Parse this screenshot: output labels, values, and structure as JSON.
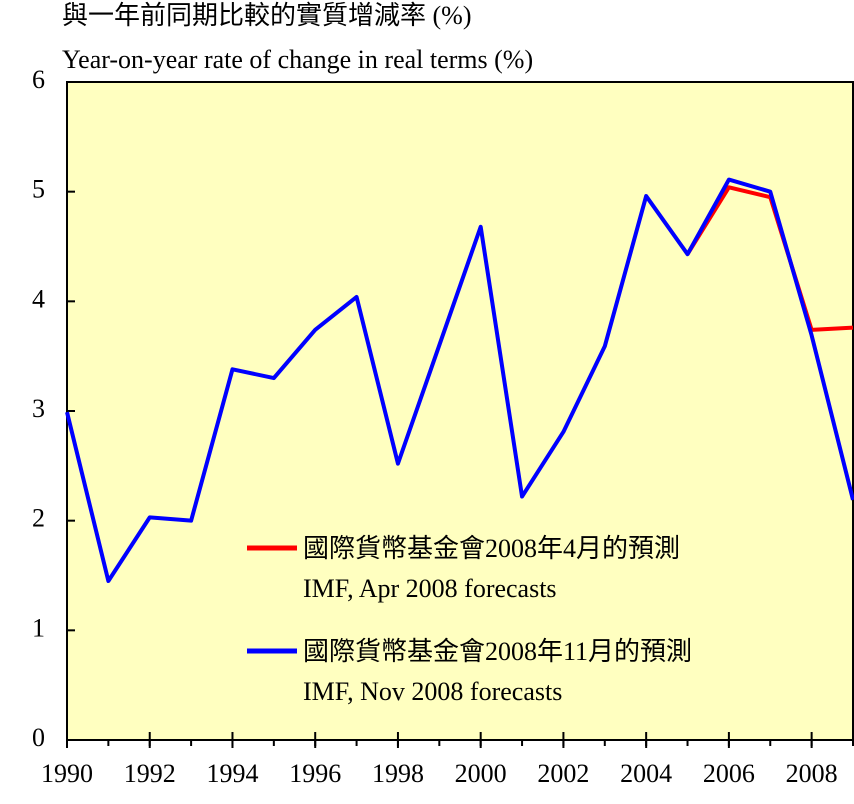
{
  "chart_data": {
    "type": "line",
    "title": "與一年前同期比較的實質增減率 (%)",
    "subtitle": "Year-on-year rate of change in real terms (%)",
    "x": [
      1990,
      1991,
      1992,
      1993,
      1994,
      1995,
      1996,
      1997,
      1998,
      1999,
      2000,
      2001,
      2002,
      2003,
      2004,
      2005,
      2006,
      2007,
      2008,
      2009
    ],
    "series": [
      {
        "name": "國際貨幣基金會2008年4月的預測",
        "subname": "IMF, Apr 2008 forecasts",
        "color": "#ff0000",
        "values": [
          null,
          null,
          null,
          null,
          null,
          null,
          null,
          null,
          null,
          null,
          null,
          null,
          null,
          null,
          null,
          4.43,
          5.04,
          4.95,
          3.74,
          3.76
        ]
      },
      {
        "name": "國際貨幣基金會2008年11月的預測",
        "subname": "IMF, Nov 2008 forecasts",
        "color": "#0000ff",
        "values": [
          2.99,
          1.45,
          2.03,
          2.0,
          3.38,
          3.3,
          3.74,
          4.04,
          2.52,
          3.6,
          4.68,
          2.22,
          2.81,
          3.59,
          4.96,
          4.43,
          5.11,
          5.0,
          3.69,
          2.19
        ]
      }
    ],
    "xlim": [
      1990,
      2009
    ],
    "xticks": [
      1990,
      1992,
      1994,
      1996,
      1998,
      2000,
      2002,
      2004,
      2006,
      2008
    ],
    "ylim": [
      0,
      6
    ],
    "yticks": [
      0,
      1,
      2,
      3,
      4,
      5,
      6
    ],
    "background": "#ffffc0"
  }
}
